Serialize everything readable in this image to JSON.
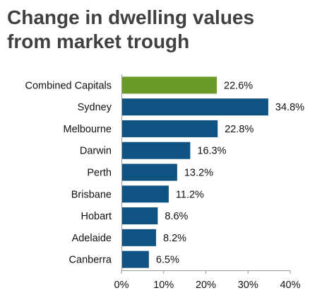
{
  "title_lines": [
    "Change in dwelling values",
    "from market trough"
  ],
  "chart_data": {
    "type": "bar",
    "orientation": "horizontal",
    "title": "Change in dwelling values from market trough",
    "categories": [
      "Combined Capitals",
      "Sydney",
      "Melbourne",
      "Darwin",
      "Perth",
      "Brisbane",
      "Hobart",
      "Adelaide",
      "Canberra"
    ],
    "values": [
      22.6,
      34.8,
      22.8,
      16.3,
      13.2,
      11.2,
      8.6,
      8.2,
      6.5
    ],
    "value_labels": [
      "22.6%",
      "34.8%",
      "22.8%",
      "16.3%",
      "13.2%",
      "11.2%",
      "8.6%",
      "8.2%",
      "6.5%"
    ],
    "xlim": [
      0,
      40
    ],
    "xticks": [
      0,
      10,
      20,
      30,
      40
    ],
    "xtick_labels": [
      "0%",
      "10%",
      "20%",
      "30%",
      "40%"
    ],
    "xlabel": "",
    "ylabel": "",
    "grid": false,
    "legend": "none",
    "colors": {
      "highlight": "#6a9a2a",
      "bar": "#0e5382",
      "text": "#111111",
      "title": "#404040",
      "axis": "#9a9a9a"
    },
    "highlight_category": "Combined Capitals"
  }
}
